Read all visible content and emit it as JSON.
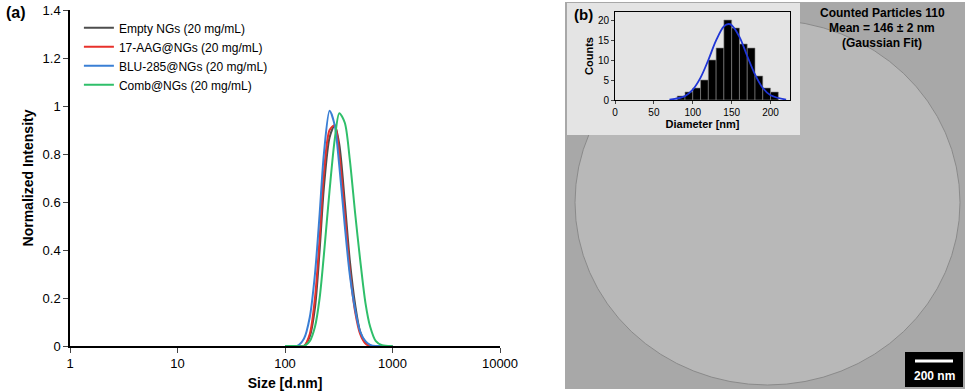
{
  "chart_data": [
    {
      "type": "line",
      "annotations": [
        "(a)"
      ],
      "x_label": "Size [d.nm]",
      "y_label": "Normalized Intensity",
      "log": "x",
      "x": [
        100,
        130,
        150,
        170,
        190,
        210,
        230,
        260,
        290,
        320,
        360,
        400,
        450,
        500,
        560,
        620,
        700,
        800,
        1000
      ],
      "series": [
        {
          "name": "Empty NGs (20 mg/mL)",
          "color": "#4d4d4d",
          "values": [
            0,
            0,
            0,
            0.04,
            0.16,
            0.4,
            0.66,
            0.87,
            0.92,
            0.84,
            0.6,
            0.36,
            0.17,
            0.06,
            0.015,
            0,
            0,
            0,
            0
          ]
        },
        {
          "name": "17-AAG@NGs (20 mg/mL)",
          "color": "#e8312b",
          "values": [
            0,
            0,
            0,
            0.05,
            0.2,
            0.45,
            0.72,
            0.9,
            0.92,
            0.8,
            0.55,
            0.32,
            0.14,
            0.05,
            0.01,
            0,
            0,
            0,
            0
          ]
        },
        {
          "name": "BLU-285@NGs (20 mg/mL)",
          "color": "#3a7fd5",
          "values": [
            0,
            0,
            0.03,
            0.12,
            0.3,
            0.55,
            0.8,
            0.98,
            0.92,
            0.75,
            0.5,
            0.3,
            0.15,
            0.06,
            0.02,
            0.005,
            0,
            0,
            0
          ]
        },
        {
          "name": "Comb@NGs (20 mg/mL)",
          "color": "#2fbf6a",
          "values": [
            0,
            0,
            0,
            0.02,
            0.08,
            0.2,
            0.38,
            0.65,
            0.86,
            0.97,
            0.93,
            0.78,
            0.55,
            0.36,
            0.18,
            0.08,
            0.02,
            0.003,
            0
          ]
        }
      ],
      "xlim": [
        1,
        10000
      ],
      "xticks": [
        1,
        10,
        100,
        1000,
        10000
      ],
      "ylim": [
        0,
        1.4
      ],
      "yticks": [
        0,
        0.2,
        0.4,
        0.6,
        0.8,
        1,
        1.2,
        1.4
      ],
      "legend": "upper left",
      "grid": false
    },
    {
      "type": "histogram",
      "annotations": [
        "(b)",
        "Counted Particles 110",
        "Mean = 146 ± 2 nm",
        "(Gaussian Fit)",
        "200 nm"
      ],
      "x_label": "Diameter [nm]",
      "y_label": "Counts",
      "bins": [
        80,
        90,
        100,
        110,
        120,
        130,
        140,
        150,
        160,
        170,
        180,
        190,
        200,
        210
      ],
      "values": [
        1,
        2,
        3,
        5,
        10,
        13,
        20,
        18,
        14,
        13,
        6,
        3,
        2
      ],
      "color": "#000000",
      "series": [
        {
          "type": "line",
          "color": "#1f35d6",
          "x": [
            70,
            90,
            100,
            110,
            120,
            130,
            140,
            146,
            150,
            160,
            170,
            180,
            190,
            200,
            220
          ],
          "values": [
            0.08,
            0.98,
            2.6,
            5.6,
            10,
            14.9,
            18.4,
            19,
            18.7,
            15.8,
            11,
            6.4,
            3,
            1.2,
            0.1
          ]
        }
      ],
      "xlim": [
        0,
        225
      ],
      "xticks": [
        0,
        50,
        100,
        150,
        200
      ],
      "ylim": [
        0,
        22
      ],
      "yticks": [
        0,
        5,
        10,
        15,
        20
      ],
      "grid": false
    }
  ]
}
